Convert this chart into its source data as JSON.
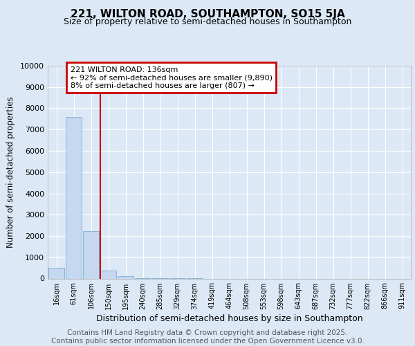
{
  "title": "221, WILTON ROAD, SOUTHAMPTON, SO15 5JA",
  "subtitle": "Size of property relative to semi-detached houses in Southampton",
  "xlabel": "Distribution of semi-detached houses by size in Southampton",
  "ylabel": "Number of semi-detached properties",
  "categories": [
    "16sqm",
    "61sqm",
    "106sqm",
    "150sqm",
    "195sqm",
    "240sqm",
    "285sqm",
    "329sqm",
    "374sqm",
    "419sqm",
    "464sqm",
    "508sqm",
    "553sqm",
    "598sqm",
    "643sqm",
    "687sqm",
    "732sqm",
    "777sqm",
    "822sqm",
    "866sqm",
    "911sqm"
  ],
  "values": [
    490,
    7580,
    2220,
    380,
    100,
    15,
    4,
    2,
    1,
    0,
    0,
    0,
    0,
    0,
    0,
    0,
    0,
    0,
    0,
    0,
    0
  ],
  "bar_color": "#c5d8f0",
  "bar_edge_color": "#7aadd4",
  "marker_line_color": "#cc0000",
  "annotation_text": "221 WILTON ROAD: 136sqm\n← 92% of semi-detached houses are smaller (9,890)\n8% of semi-detached houses are larger (807) →",
  "annotation_box_color": "#cc0000",
  "ylim": [
    0,
    10000
  ],
  "yticks": [
    0,
    1000,
    2000,
    3000,
    4000,
    5000,
    6000,
    7000,
    8000,
    9000,
    10000
  ],
  "background_color": "#dce8f5",
  "plot_bg_color": "#dce8f5",
  "grid_color": "#ffffff",
  "footer_text": "Contains HM Land Registry data © Crown copyright and database right 2025.\nContains public sector information licensed under the Open Government Licence v3.0.",
  "title_fontsize": 11,
  "subtitle_fontsize": 9,
  "xlabel_fontsize": 9,
  "ylabel_fontsize": 8.5,
  "footer_fontsize": 7.5,
  "annotation_fontsize": 8
}
